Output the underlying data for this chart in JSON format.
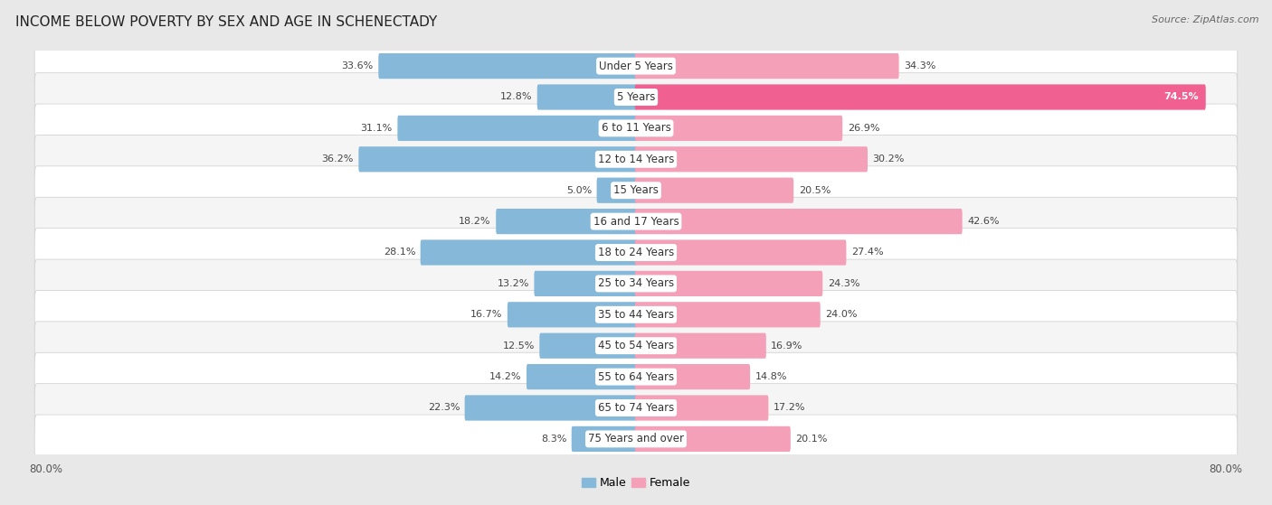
{
  "title": "INCOME BELOW POVERTY BY SEX AND AGE IN SCHENECTADY",
  "source": "Source: ZipAtlas.com",
  "categories": [
    "Under 5 Years",
    "5 Years",
    "6 to 11 Years",
    "12 to 14 Years",
    "15 Years",
    "16 and 17 Years",
    "18 to 24 Years",
    "25 to 34 Years",
    "35 to 44 Years",
    "45 to 54 Years",
    "55 to 64 Years",
    "65 to 74 Years",
    "75 Years and over"
  ],
  "male_values": [
    33.6,
    12.8,
    31.1,
    36.2,
    5.0,
    18.2,
    28.1,
    13.2,
    16.7,
    12.5,
    14.2,
    22.3,
    8.3
  ],
  "female_values": [
    34.3,
    74.5,
    26.9,
    30.2,
    20.5,
    42.6,
    27.4,
    24.3,
    24.0,
    16.9,
    14.8,
    17.2,
    20.1
  ],
  "male_color": "#85b8d9",
  "female_color": "#f4a0b9",
  "female_color_bright": "#f06090",
  "axis_limit": 80.0,
  "background_color": "#e8e8e8",
  "row_bg_even": "#f5f5f5",
  "row_bg_odd": "#ffffff",
  "title_fontsize": 11,
  "label_fontsize": 8.5,
  "value_fontsize": 8,
  "legend_fontsize": 9,
  "source_fontsize": 8
}
